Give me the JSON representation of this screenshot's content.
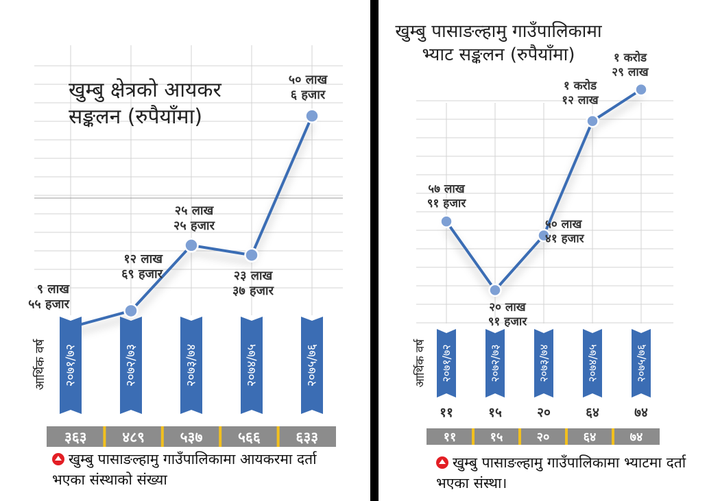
{
  "chart_data": [
    {
      "type": "line",
      "title": "खुम्बु क्षेत्रको आयकर सङ्कलन (रुपैयाँमा)",
      "xlabel": "आर्थिक वर्ष",
      "categories": [
        "२०७१/७२",
        "२०७२/७३",
        "२०७३/७४",
        "२०७४/७५",
        "२०७५/७६"
      ],
      "series": [
        {
          "values": [
            955000,
            1269000,
            2525000,
            2337000,
            5006000
          ]
        }
      ],
      "data_labels": [
        [
          "९ लाख",
          "५५ हजार"
        ],
        [
          "१२ लाख",
          "६९ हजार"
        ],
        [
          "२५ लाख",
          "२५ हजार"
        ],
        [
          "२३ लाख",
          "३७ हजार"
        ],
        [
          "५० लाख",
          "६ हजार"
        ]
      ],
      "ylim": [
        0,
        5600000
      ],
      "grid": true,
      "color": "#3b6db4",
      "bottom_bar": {
        "values": [
          "३६३",
          "४८९",
          "५३७",
          "५६६",
          "६३३"
        ],
        "note": "खुम्बु पासाङल्हामु गाउँपालिकामा आयकरमा दर्ता भएका संस्थाको संख्या"
      }
    },
    {
      "type": "line",
      "title": "खुम्बु पासाङल्हामु गाउँपालिकामा भ्याट सङ्कलन (रुपैयाँमा)",
      "xlabel": "आर्थिक वर्ष",
      "categories": [
        "२०७१/७२",
        "२०७२/७३",
        "२०७३/७४",
        "२०७४/७५",
        "२०७५/७६"
      ],
      "series": [
        {
          "values": [
            5791000,
            2091000,
            5041000,
            11200000,
            12900000
          ]
        }
      ],
      "data_labels": [
        [
          "५७ लाख",
          "९१ हजार"
        ],
        [
          "२० लाख",
          "९१ हजार"
        ],
        [
          "५० लाख",
          "४१ हजार"
        ],
        [
          "१ करोड",
          "१२ लाख"
        ],
        [
          "१ करोड",
          "२९ लाख"
        ]
      ],
      "ylim": [
        0,
        14400000
      ],
      "grid": true,
      "color": "#3b6db4",
      "counts_above": [
        "११",
        "१५",
        "२०",
        "६४",
        "७४"
      ],
      "bottom_bar": {
        "values": [
          "११",
          "१५",
          "२०",
          "६४",
          "७४"
        ],
        "note": "खुम्बु पासाङल्हामु गाउँपालिकामा भ्याटमा दर्ता भएका संस्था।"
      }
    }
  ],
  "colors": {
    "line": "#3b6db4",
    "point": "#7d9fd4",
    "tag": "#3b6db4",
    "bar_bg": "#8c8c8c",
    "bar_sep": "#f2c01e",
    "grid": "#d3d3d3",
    "icon": "#e31e24"
  }
}
